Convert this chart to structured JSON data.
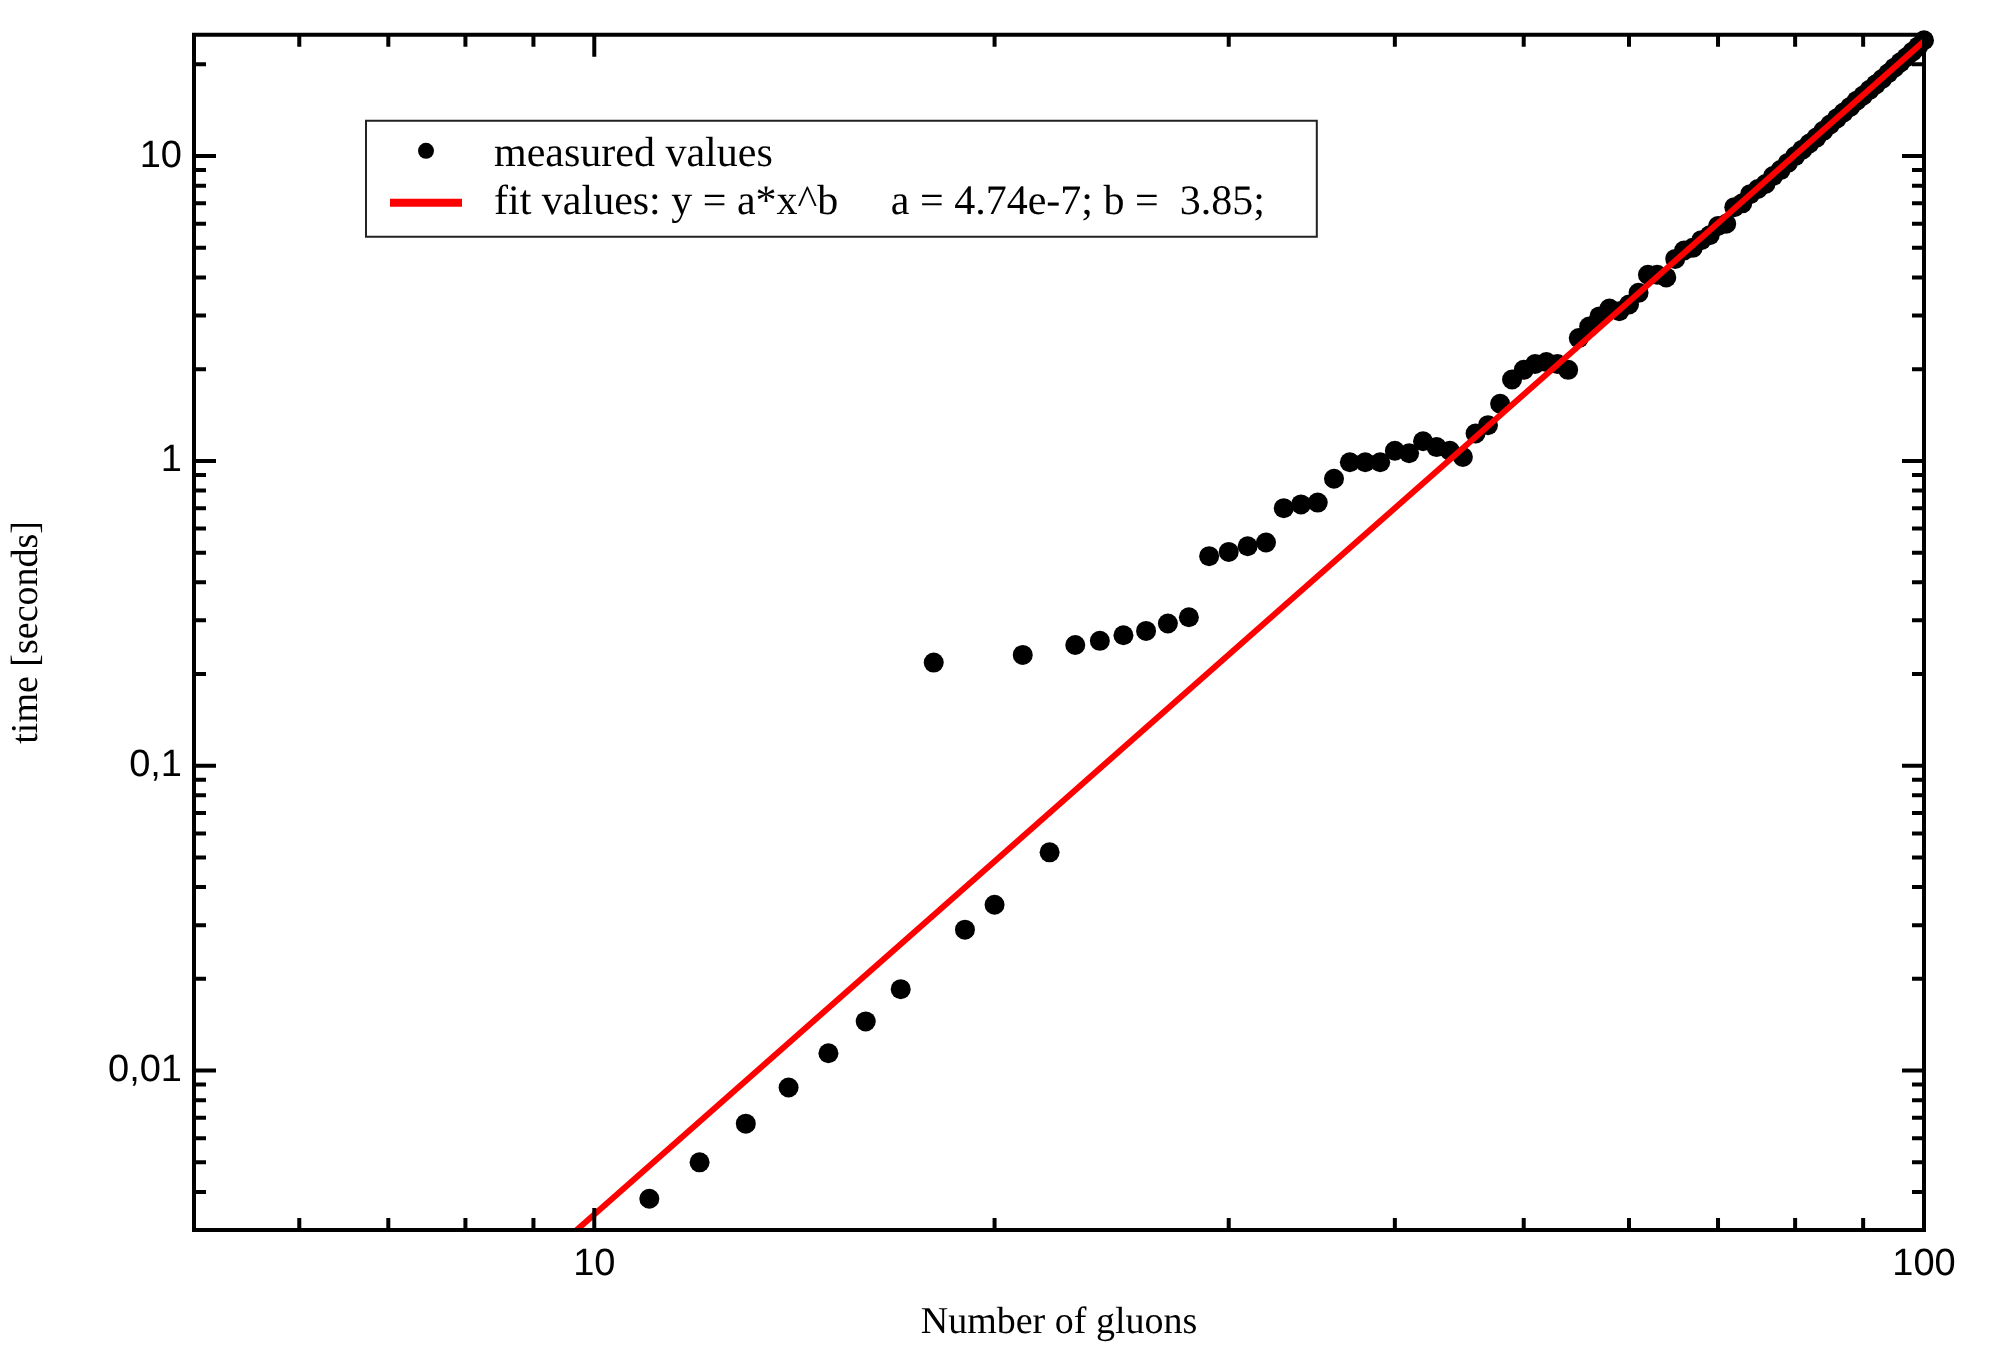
{
  "chart_data": {
    "type": "scatter",
    "xlabel": "Number of gluons",
    "ylabel": "time [seconds]",
    "log": "xy",
    "grid": false,
    "legend": "top left",
    "marker": "circle",
    "xlim": [
      5,
      100
    ],
    "ylim": [
      0.003,
      25
    ],
    "xticks": [
      {
        "value": 6,
        "label": null
      },
      {
        "value": 7,
        "label": null
      },
      {
        "value": 8,
        "label": null
      },
      {
        "value": 9,
        "label": null
      },
      10,
      {
        "value": 20,
        "label": null
      },
      {
        "value": 30,
        "label": null
      },
      {
        "value": 40,
        "label": null
      },
      {
        "value": 50,
        "label": null
      },
      {
        "value": 60,
        "label": null
      },
      {
        "value": 70,
        "label": null
      },
      {
        "value": 80,
        "label": null
      },
      {
        "value": 90,
        "label": null
      },
      100
    ],
    "yticks": [
      {
        "value": 0.004,
        "label": null
      },
      {
        "value": 0.005,
        "label": null
      },
      {
        "value": 0.006,
        "label": null
      },
      {
        "value": 0.007,
        "label": null
      },
      {
        "value": 0.008,
        "label": null
      },
      {
        "value": 0.009,
        "label": null
      },
      {
        "value": 0.01,
        "label": "0,01"
      },
      {
        "value": 0.02,
        "label": null
      },
      {
        "value": 0.03,
        "label": null
      },
      {
        "value": 0.04,
        "label": null
      },
      {
        "value": 0.05,
        "label": null
      },
      {
        "value": 0.06,
        "label": null
      },
      {
        "value": 0.07,
        "label": null
      },
      {
        "value": 0.08,
        "label": null
      },
      {
        "value": 0.09,
        "label": null
      },
      {
        "value": 0.1,
        "label": "0,1"
      },
      {
        "value": 0.2,
        "label": null
      },
      {
        "value": 0.3,
        "label": null
      },
      {
        "value": 0.4,
        "label": null
      },
      {
        "value": 0.5,
        "label": null
      },
      {
        "value": 0.6,
        "label": null
      },
      {
        "value": 0.7,
        "label": null
      },
      {
        "value": 0.8,
        "label": null
      },
      {
        "value": 0.9,
        "label": null
      },
      1,
      {
        "value": 2,
        "label": null
      },
      {
        "value": 3,
        "label": null
      },
      {
        "value": 4,
        "label": null
      },
      {
        "value": 5,
        "label": null
      },
      {
        "value": 6,
        "label": null
      },
      {
        "value": 7,
        "label": null
      },
      {
        "value": 8,
        "label": null
      },
      {
        "value": 9,
        "label": null
      },
      10,
      {
        "value": 20,
        "label": null
      }
    ],
    "series": [
      {
        "name": "measured values",
        "color": "#000000",
        "x": [
          11,
          12,
          13,
          14,
          15,
          16,
          17,
          18,
          19,
          20,
          21,
          22,
          23,
          24,
          25,
          26,
          27,
          28,
          29,
          30,
          31,
          32,
          33,
          34,
          35,
          36,
          37,
          38,
          39,
          40,
          41,
          42,
          43,
          44,
          45,
          46,
          47,
          48,
          49,
          50,
          51,
          52,
          53,
          54,
          55,
          56,
          57,
          58,
          59,
          60,
          61,
          62,
          63,
          64,
          65,
          66,
          67,
          68,
          69,
          70,
          71,
          72,
          73,
          74,
          75,
          76,
          77,
          78,
          79,
          80,
          81,
          82,
          83,
          84,
          85,
          86,
          87,
          88,
          89,
          90,
          91,
          92,
          93,
          94,
          95,
          96,
          97,
          98,
          99,
          100
        ],
        "values": [
          0.0038,
          0.005,
          0.0067,
          0.0088,
          0.0114,
          0.0145,
          0.0185,
          0.218,
          0.029,
          0.035,
          0.231,
          0.052,
          0.249,
          0.257,
          0.268,
          0.277,
          0.293,
          0.307,
          0.487,
          0.503,
          0.525,
          0.54,
          0.7,
          0.72,
          0.73,
          0.874,
          0.99,
          0.99,
          0.99,
          1.08,
          1.06,
          1.16,
          1.11,
          1.08,
          1.03,
          1.23,
          1.31,
          1.54,
          1.85,
          1.99,
          2.08,
          2.11,
          2.08,
          1.99,
          2.53,
          2.76,
          2.98,
          3.16,
          3.1,
          3.26,
          3.56,
          4.08,
          4.08,
          4.0,
          4.6,
          4.9,
          5.0,
          5.3,
          5.5,
          5.9,
          6.0,
          6.8,
          7.0,
          7.5,
          7.8,
          8.1,
          8.6,
          9.0,
          9.5,
          10,
          10.5,
          11,
          11.5,
          12.1,
          12.7,
          13.3,
          13.9,
          14.5,
          15.2,
          15.8,
          16.5,
          17.2,
          17.9,
          18.7,
          19.5,
          20.3,
          21.1,
          22,
          22.9,
          24
        ]
      },
      {
        "name": "fit values: y = a*x^b     a = 4.74e-7; b =  3.85;",
        "type": "line",
        "color": "#ff0000",
        "line_style": "solid",
        "marker": "none",
        "x": [
          9.7,
          100
        ],
        "values": [
          0.003,
          23.8
        ]
      }
    ]
  }
}
